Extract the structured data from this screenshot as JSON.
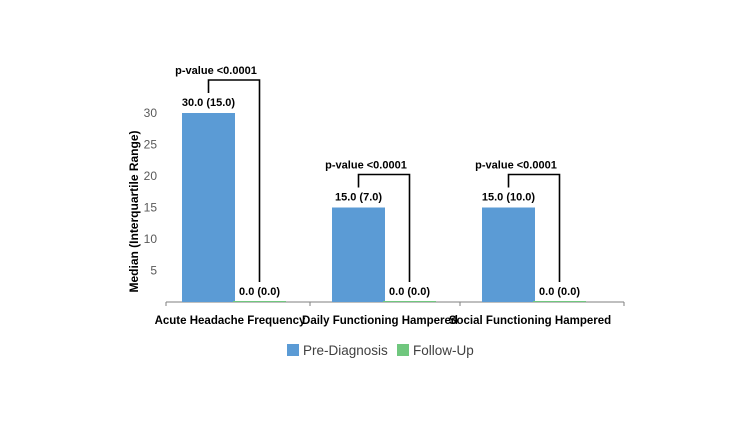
{
  "chart_data": {
    "type": "bar",
    "title": "",
    "xlabel": "",
    "ylabel": "Median (Interquartile Range)",
    "ylim": [
      0,
      30
    ],
    "yticks": [
      5,
      10,
      15,
      20,
      25,
      30
    ],
    "grid": false,
    "legend_position": "bottom",
    "categories": [
      "Acute Headache Frequency",
      "Daily Functioning Hampered",
      "Social Functioning Hampered"
    ],
    "series": [
      {
        "name": "Pre-Diagnosis",
        "color": "#5B9BD5",
        "values": [
          30,
          15,
          15
        ],
        "labels": [
          "30.0 (15.0)",
          "15.0 (7.0)",
          "15.0 (10.0)"
        ]
      },
      {
        "name": "Follow-Up",
        "color": "#70C77E",
        "values": [
          0,
          0,
          0
        ],
        "labels": [
          "0.0 (0.0)",
          "0.0 (0.0)",
          "0.0 (0.0)"
        ]
      }
    ],
    "annotations": [
      "p-value <0.0001",
      "p-value <0.0001",
      "p-value <0.0001"
    ]
  }
}
